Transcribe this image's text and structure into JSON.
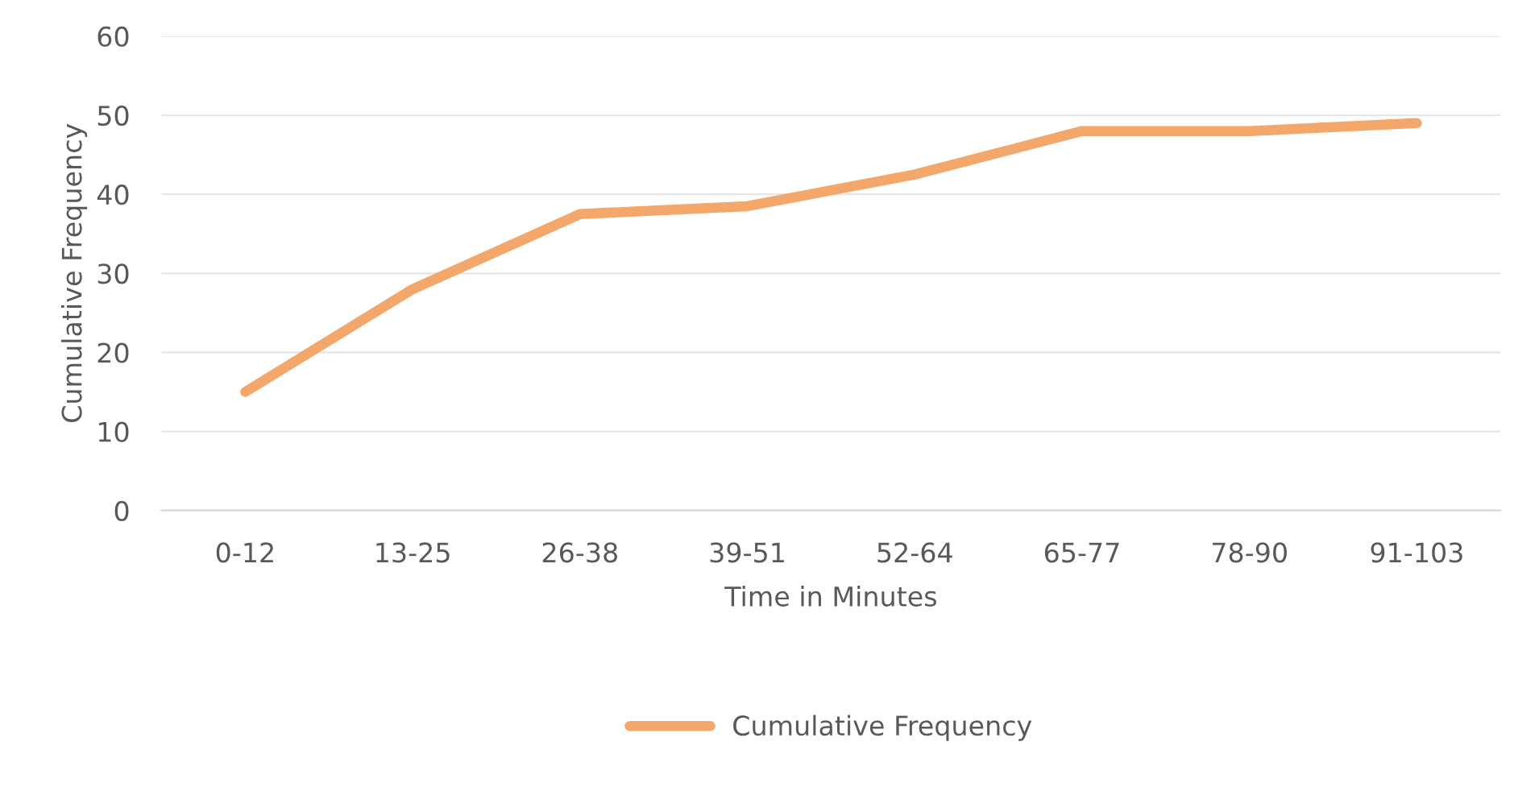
{
  "chart_data": {
    "type": "line",
    "xlabel": "Time in Minutes",
    "ylabel": "Cumulative Frequency",
    "categories": [
      "0-12",
      "13-25",
      "26-38",
      "39-51",
      "52-64",
      "65-77",
      "78-90",
      "91-103"
    ],
    "series": [
      {
        "name": "Cumulative Frequency",
        "color": "#f4a76a",
        "values": [
          15,
          28,
          37.5,
          38.5,
          42.5,
          48,
          48,
          49
        ]
      }
    ],
    "ylim": [
      0,
      60
    ],
    "yticks": [
      0,
      10,
      20,
      30,
      40,
      50,
      60
    ],
    "grid": "y",
    "legend": "bottom",
    "marker": "none",
    "line_style": "solid"
  }
}
